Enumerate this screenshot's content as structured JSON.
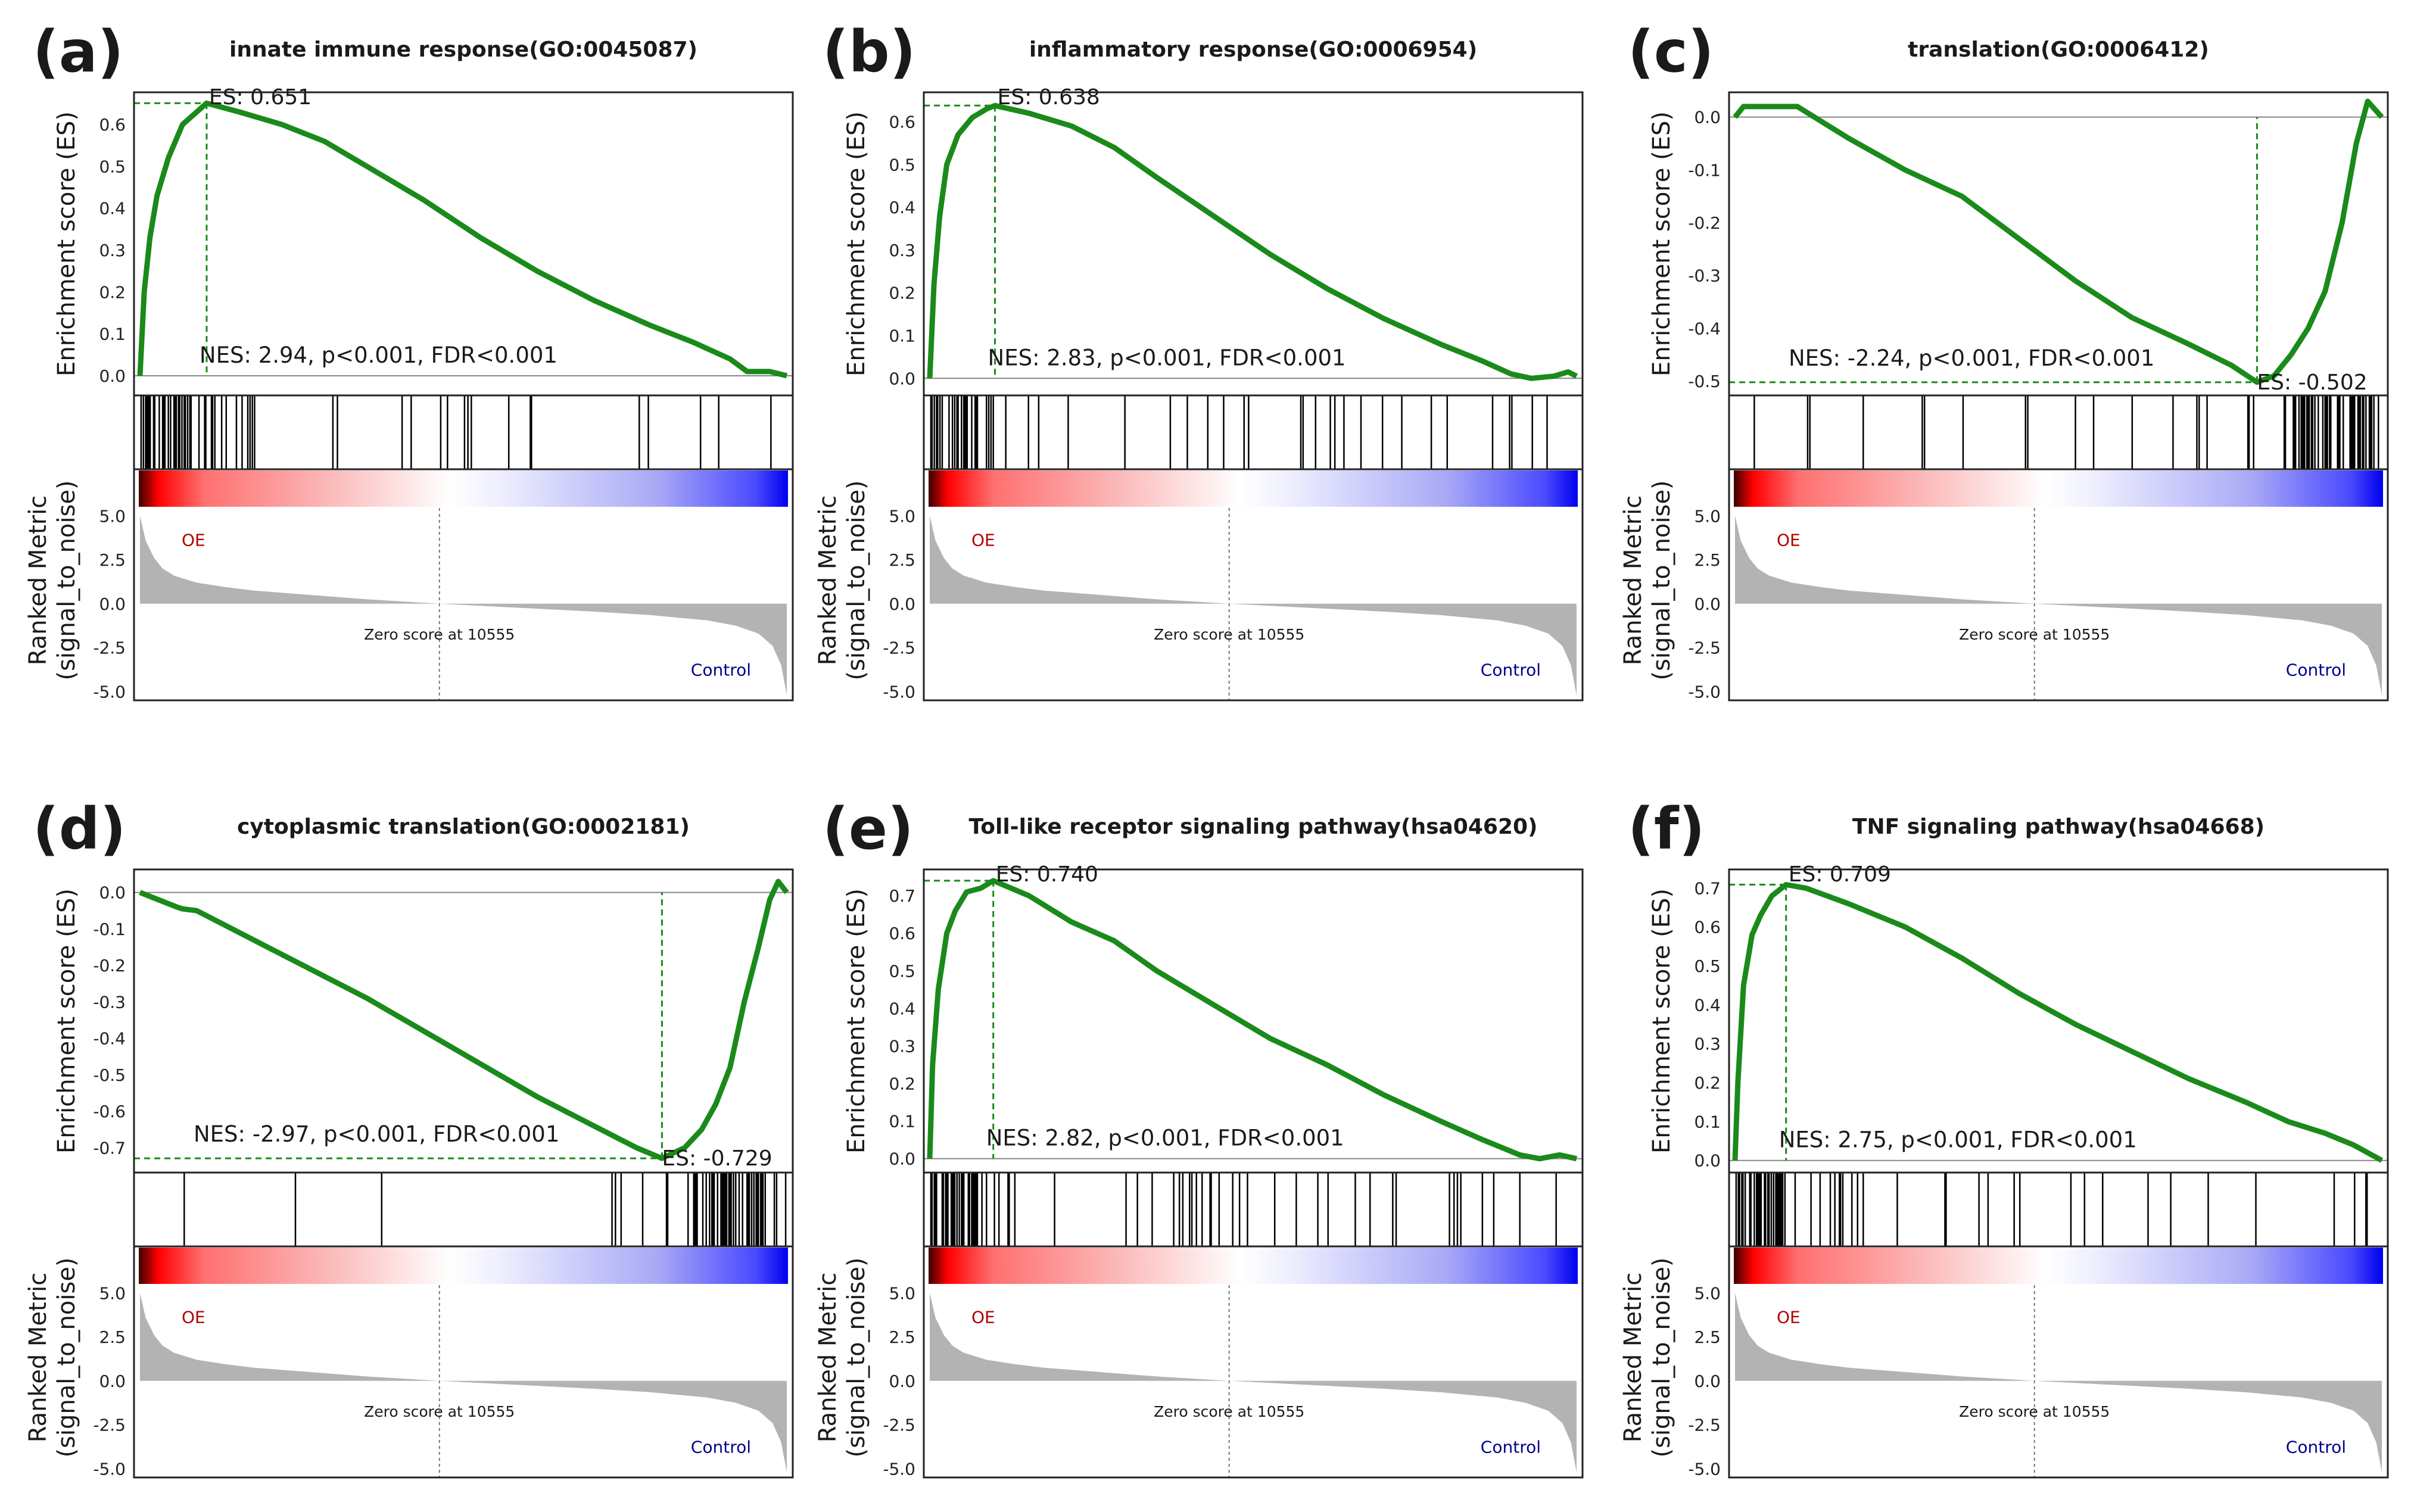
{
  "chart_data": [
    {
      "type": "line",
      "panel_label": "(a)",
      "title": "innate immune response(GO:0045087)",
      "ylabel_top": "Enrichment score (ES)",
      "ylabel_bottom": [
        "Ranked Metric",
        "(signal_to_noise)"
      ],
      "es": 0.651,
      "es_label": "ES: 0.651",
      "es_rank": 2350,
      "stats_label": "NES: 2.94, p<0.001, FDR<0.001",
      "ylim": [
        -0.047,
        0.677
      ],
      "yticks": [
        0.0,
        0.1,
        0.2,
        0.3,
        0.4,
        0.5,
        0.6
      ],
      "es_curve": {
        "rank": [
          0,
          150,
          350,
          600,
          1000,
          1500,
          2000,
          2350,
          3500,
          5000,
          6500,
          8000,
          10000,
          12000,
          14000,
          16000,
          18000,
          19500,
          20800,
          21400,
          22200,
          22800
        ],
        "es": [
          0,
          0.2,
          0.33,
          0.43,
          0.52,
          0.6,
          0.63,
          0.651,
          0.63,
          0.6,
          0.56,
          0.5,
          0.42,
          0.33,
          0.25,
          0.18,
          0.12,
          0.08,
          0.04,
          0.01,
          0.01,
          0.0
        ]
      }
    },
    {
      "type": "line",
      "panel_label": "(b)",
      "title": "inflammatory response(GO:0006954)",
      "ylabel_top": "Enrichment score (ES)",
      "ylabel_bottom": [
        "Ranked Metric",
        "(signal_to_noise)"
      ],
      "es": 0.638,
      "es_label": "ES: 0.638",
      "es_rank": 2300,
      "stats_label": "NES: 2.83, p<0.001, FDR<0.001",
      "ylim": [
        -0.04,
        0.669
      ],
      "yticks": [
        0.0,
        0.1,
        0.2,
        0.3,
        0.4,
        0.5,
        0.6
      ],
      "es_curve": {
        "rank": [
          0,
          150,
          350,
          600,
          1000,
          1500,
          2000,
          2300,
          3500,
          5000,
          6500,
          8000,
          10000,
          12000,
          14000,
          16000,
          18000,
          19500,
          20500,
          21200,
          22000,
          22500,
          22800
        ],
        "es": [
          0,
          0.22,
          0.38,
          0.5,
          0.57,
          0.61,
          0.63,
          0.638,
          0.62,
          0.59,
          0.54,
          0.47,
          0.38,
          0.29,
          0.21,
          0.14,
          0.08,
          0.04,
          0.01,
          0.0,
          0.005,
          0.015,
          0.005
        ]
      }
    },
    {
      "type": "line",
      "panel_label": "(c)",
      "title": "translation(GO:0006412)",
      "ylabel_top": "Enrichment score (ES)",
      "ylabel_bottom": [
        "Ranked Metric",
        "(signal_to_noise)"
      ],
      "es": -0.502,
      "es_label": "ES: -0.502",
      "es_rank": 18400,
      "stats_label": "NES: -2.24, p<0.001, FDR<0.001",
      "ylim": [
        -0.527,
        0.047
      ],
      "yticks": [
        0.0,
        -0.1,
        -0.2,
        -0.3,
        -0.4,
        -0.5
      ],
      "es_curve": {
        "rank": [
          0,
          300,
          1200,
          2200,
          2800,
          4000,
          6000,
          8000,
          10000,
          12000,
          14000,
          16000,
          17500,
          18400,
          19000,
          19600,
          20200,
          20800,
          21400,
          21900,
          22300,
          22800
        ],
        "es": [
          0,
          0.02,
          0.02,
          0.02,
          0.0,
          -0.04,
          -0.1,
          -0.15,
          -0.23,
          -0.31,
          -0.38,
          -0.43,
          -0.47,
          -0.502,
          -0.49,
          -0.45,
          -0.4,
          -0.33,
          -0.2,
          -0.05,
          0.03,
          0.0
        ]
      }
    },
    {
      "type": "line",
      "panel_label": "(d)",
      "title": "cytoplasmic translation(GO:0002181)",
      "ylabel_top": "Enrichment score (ES)",
      "ylabel_bottom": [
        "Ranked Metric",
        "(signal_to_noise)"
      ],
      "es": -0.729,
      "es_label": "ES: -0.729",
      "es_rank": 18400,
      "stats_label": "NES: -2.97, p<0.001, FDR<0.001",
      "ylim": [
        -0.768,
        0.063
      ],
      "yticks": [
        0.0,
        -0.1,
        -0.2,
        -0.3,
        -0.4,
        -0.5,
        -0.6,
        -0.7
      ],
      "es_curve": {
        "rank": [
          0,
          1300,
          1500,
          2000,
          4000,
          6000,
          8000,
          10000,
          12000,
          14000,
          16000,
          17500,
          18400,
          19200,
          19800,
          20300,
          20800,
          21300,
          21800,
          22200,
          22500,
          22800
        ],
        "es": [
          0,
          -0.04,
          -0.045,
          -0.05,
          -0.13,
          -0.21,
          -0.29,
          -0.38,
          -0.47,
          -0.56,
          -0.64,
          -0.7,
          -0.729,
          -0.7,
          -0.65,
          -0.58,
          -0.48,
          -0.3,
          -0.15,
          -0.02,
          0.03,
          0.0
        ]
      }
    },
    {
      "type": "line",
      "panel_label": "(e)",
      "title": "Toll-like receptor signaling pathway(hsa04620)",
      "ylabel_top": "Enrichment score (ES)",
      "ylabel_bottom": [
        "Ranked Metric",
        "(signal_to_noise)"
      ],
      "es": 0.74,
      "es_label": "ES: 0.740",
      "es_rank": 2240,
      "stats_label": "NES: 2.82, p<0.001, FDR<0.001",
      "ylim": [
        -0.037,
        0.77
      ],
      "yticks": [
        0.0,
        0.1,
        0.2,
        0.3,
        0.4,
        0.5,
        0.6,
        0.7
      ],
      "es_curve": {
        "rank": [
          0,
          100,
          300,
          600,
          900,
          1300,
          1800,
          2240,
          3500,
          5000,
          6500,
          8000,
          10000,
          12000,
          14000,
          16000,
          18000,
          19500,
          20800,
          21500,
          22200,
          22800
        ],
        "es": [
          0,
          0.25,
          0.45,
          0.6,
          0.66,
          0.71,
          0.72,
          0.74,
          0.7,
          0.63,
          0.58,
          0.5,
          0.41,
          0.32,
          0.25,
          0.17,
          0.1,
          0.05,
          0.01,
          0.0,
          0.01,
          0.0
        ]
      }
    },
    {
      "type": "line",
      "panel_label": "(f)",
      "title": "TNF signaling pathway(hsa04668)",
      "ylabel_top": "Enrichment score (ES)",
      "ylabel_bottom": [
        "Ranked Metric",
        "(signal_to_noise)"
      ],
      "es": 0.709,
      "es_label": "ES: 0.709",
      "es_rank": 1800,
      "stats_label": "NES: 2.75, p<0.001, FDR<0.001",
      "ylim": [
        -0.031,
        0.748
      ],
      "yticks": [
        0.0,
        0.1,
        0.2,
        0.3,
        0.4,
        0.5,
        0.6,
        0.7
      ],
      "es_curve": {
        "rank": [
          0,
          100,
          300,
          600,
          900,
          1300,
          1800,
          2500,
          4000,
          6000,
          8000,
          10000,
          12000,
          14000,
          16000,
          18000,
          19500,
          20800,
          21800,
          22800
        ],
        "es": [
          0,
          0.2,
          0.45,
          0.58,
          0.63,
          0.68,
          0.709,
          0.7,
          0.66,
          0.6,
          0.52,
          0.43,
          0.35,
          0.28,
          0.21,
          0.15,
          0.1,
          0.07,
          0.04,
          0.0
        ]
      }
    }
  ],
  "ranked_metric": {
    "rank": [
      0,
      200,
      500,
      800,
      1200,
      2000,
      3000,
      4000,
      6000,
      8000,
      10555,
      13000,
      16000,
      18000,
      20000,
      21000,
      21800,
      22300,
      22600,
      22800
    ],
    "value": [
      5.0,
      3.6,
      2.6,
      2.0,
      1.6,
      1.2,
      0.95,
      0.75,
      0.5,
      0.25,
      0.0,
      -0.2,
      -0.45,
      -0.65,
      -0.95,
      -1.25,
      -1.7,
      -2.4,
      -3.5,
      -5.2
    ],
    "ylim": [
      -5.5,
      5.45
    ],
    "yticks": [
      5.0,
      2.5,
      0.0,
      -2.5,
      -5.0
    ],
    "xmax": 22800,
    "zero_rank": 10555,
    "zero_label": "Zero score at 10555",
    "pos_label": "OE",
    "neg_label": "Control"
  },
  "colors": {
    "es_line": "#1a8a1a",
    "pos_label": "#b00000",
    "neg_label": "#00008b",
    "metric_fill": "#b3b3b3"
  }
}
